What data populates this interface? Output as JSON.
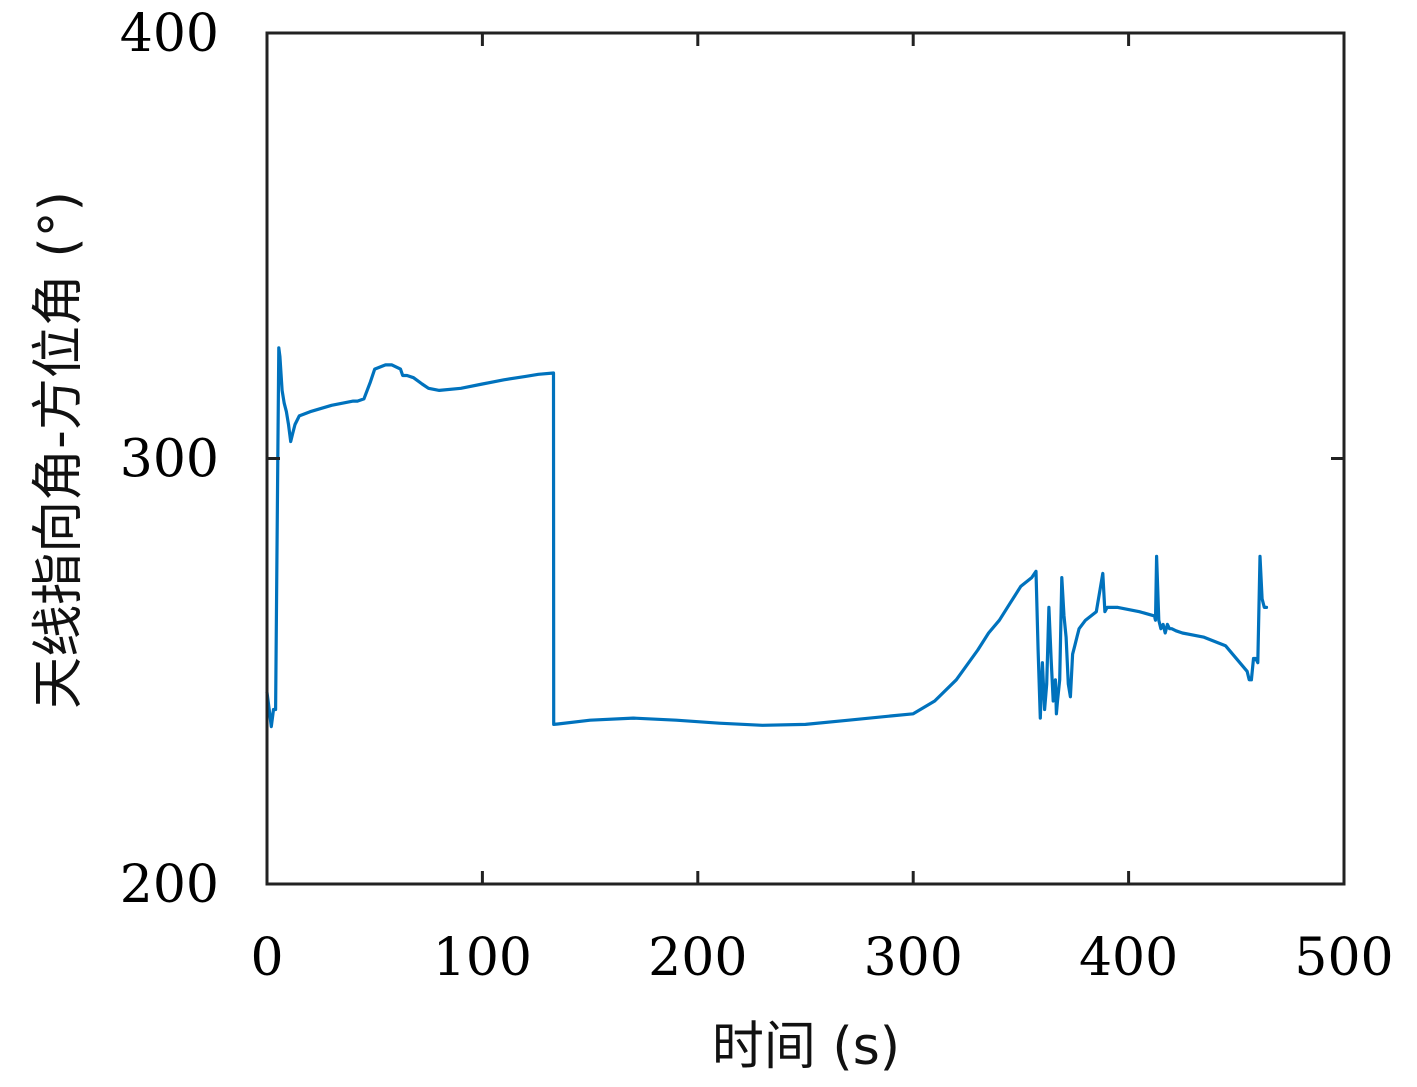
{
  "chart_data": {
    "type": "line",
    "title": "",
    "xlabel": "时间 (s)",
    "ylabel": "天线指向角-方位角 (°)",
    "xlim": [
      0,
      500
    ],
    "ylim": [
      200,
      400
    ],
    "xticks": [
      0,
      100,
      200,
      300,
      400,
      500
    ],
    "yticks": [
      200,
      300,
      400
    ],
    "xtick_labels": [
      "0",
      "100",
      "200",
      "300",
      "400",
      "500"
    ],
    "ytick_labels": [
      "200",
      "300",
      "400"
    ],
    "grid": false,
    "legend": "none",
    "line_color": "#0072BD",
    "series": [
      {
        "x": [
          0,
          1,
          2,
          3,
          4,
          5,
          5.5,
          6,
          7,
          8,
          9,
          10,
          11,
          12,
          13,
          15,
          20,
          30,
          40,
          42,
          45,
          48,
          50,
          55,
          58,
          62,
          63,
          65,
          68,
          72,
          75,
          80,
          90,
          100,
          110,
          120,
          126,
          133,
          133.1,
          135,
          150,
          170,
          190,
          210,
          230,
          250,
          270,
          290,
          300,
          310,
          320,
          330,
          335,
          340,
          345,
          350,
          355,
          357,
          358,
          359,
          359.5,
          360,
          361,
          362,
          363,
          364,
          365,
          366,
          366.5,
          367,
          368,
          369,
          370,
          371,
          372,
          373,
          374,
          375,
          376,
          377,
          380,
          385,
          388,
          389,
          390,
          391,
          392,
          395,
          405,
          412,
          412.5,
          413,
          414,
          415,
          416,
          417,
          418,
          419,
          420,
          422,
          425,
          435,
          445,
          455,
          456,
          457,
          458,
          459,
          460,
          461,
          462,
          463,
          464
        ],
        "y": [
          245,
          241,
          237,
          241,
          241,
          300,
          326,
          324,
          316,
          313,
          311,
          308,
          304,
          306,
          308,
          310,
          311,
          312.5,
          313.5,
          313.5,
          314,
          318,
          321,
          322,
          322,
          321,
          319.5,
          319.5,
          319,
          317.5,
          316.5,
          316,
          316.5,
          317.5,
          318.5,
          319.3,
          319.8,
          320.1,
          237.5,
          237.6,
          238.5,
          239,
          238.5,
          237.8,
          237.3,
          237.5,
          238.5,
          239.5,
          240,
          243,
          248,
          255,
          259,
          262,
          266,
          270,
          272,
          273.5,
          255,
          239,
          247,
          252,
          241,
          247,
          265,
          253,
          243,
          248,
          240,
          243,
          248,
          272,
          263,
          258,
          247,
          244,
          254,
          256,
          258,
          260,
          262,
          264,
          273,
          264,
          265,
          265,
          265,
          265,
          264,
          263,
          262,
          277,
          262,
          260,
          261,
          259,
          261,
          260,
          260,
          259.5,
          259,
          258,
          256,
          250,
          248,
          248,
          253,
          253,
          252,
          277,
          267,
          265,
          265
        ]
      }
    ]
  }
}
